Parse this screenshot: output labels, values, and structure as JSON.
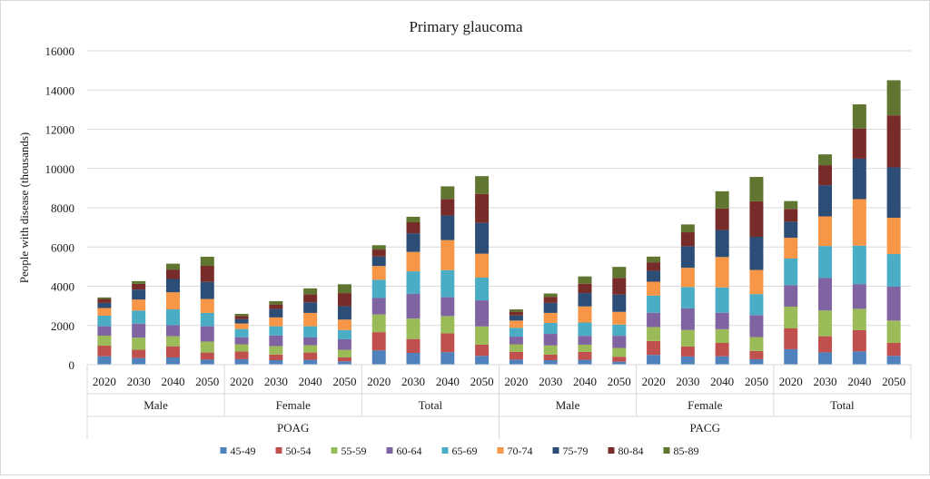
{
  "chart_data": {
    "type": "bar",
    "stacked": true,
    "title": "Primary glaucoma",
    "xlabel": "",
    "ylabel": "People with disease (thousands)",
    "ylim": [
      0,
      16000
    ],
    "yticks": [
      "0",
      "2000",
      "4000",
      "6000",
      "8000",
      "10000",
      "12000",
      "14000",
      "16000"
    ],
    "grid": true,
    "legend_position": "bottom",
    "groups": [
      {
        "label": "POAG",
        "subgroups": [
          "Male",
          "Female",
          "Total"
        ]
      },
      {
        "label": "PACG",
        "subgroups": [
          "Male",
          "Female",
          "Total"
        ]
      }
    ],
    "years": [
      "2020",
      "2030",
      "2040",
      "2050"
    ],
    "categories": [
      "POAG Male 2020",
      "POAG Male 2030",
      "POAG Male 2040",
      "POAG Male 2050",
      "POAG Female 2020",
      "POAG Female 2030",
      "POAG Female 2040",
      "POAG Female 2050",
      "POAG Total 2020",
      "POAG Total 2030",
      "POAG Total 2040",
      "POAG Total 2050",
      "PACG Male 2020",
      "PACG Male 2030",
      "PACG Male 2040",
      "PACG Male 2050",
      "PACG Female 2020",
      "PACG Female 2030",
      "PACG Female 2040",
      "PACG Female 2050",
      "PACG Total 2020",
      "PACG Total 2030",
      "PACG Total 2040",
      "PACG Total 2050"
    ],
    "series": [
      {
        "name": "45-49",
        "color": "#4F81BD",
        "values": [
          430,
          340,
          370,
          260,
          280,
          230,
          250,
          170,
          730,
          600,
          640,
          450,
          260,
          230,
          250,
          155,
          500,
          420,
          430,
          280,
          790,
          630,
          680,
          450
        ]
      },
      {
        "name": "50-54",
        "color": "#C0504D",
        "values": [
          540,
          420,
          570,
          360,
          390,
          290,
          370,
          200,
          930,
          710,
          960,
          570,
          390,
          280,
          400,
          250,
          710,
          510,
          680,
          420,
          1060,
          820,
          1080,
          660
        ]
      },
      {
        "name": "55-59",
        "color": "#9BBB59",
        "values": [
          510,
          620,
          510,
          560,
          370,
          430,
          370,
          390,
          900,
          1040,
          880,
          930,
          390,
          470,
          370,
          450,
          710,
          840,
          700,
          710,
          1110,
          1310,
          1090,
          1140
        ]
      },
      {
        "name": "60-64",
        "color": "#8064A2",
        "values": [
          480,
          710,
          560,
          780,
          360,
          540,
          400,
          540,
          840,
          1260,
          960,
          1330,
          390,
          590,
          450,
          620,
          730,
          1100,
          840,
          1120,
          1090,
          1660,
          1260,
          1730
        ]
      },
      {
        "name": "65-69",
        "color": "#4BACC6",
        "values": [
          540,
          670,
          810,
          680,
          420,
          470,
          570,
          470,
          930,
          1150,
          1380,
          1160,
          450,
          560,
          680,
          570,
          870,
          1090,
          1290,
          1070,
          1360,
          1630,
          1960,
          1660
        ]
      },
      {
        "name": "70-74",
        "color": "#F79646",
        "values": [
          390,
          560,
          870,
          710,
          280,
          450,
          680,
          530,
          700,
          990,
          1530,
          1220,
          370,
          510,
          820,
          650,
          710,
          980,
          1550,
          1230,
          1060,
          1510,
          2370,
          1850
        ]
      },
      {
        "name": "75-79",
        "color": "#2C4D75",
        "values": [
          260,
          510,
          680,
          870,
          230,
          430,
          540,
          680,
          480,
          950,
          1260,
          1570,
          260,
          510,
          680,
          880,
          560,
          1100,
          1380,
          1690,
          820,
          1590,
          2060,
          2570
        ]
      },
      {
        "name": "80-84",
        "color": "#772C2A",
        "values": [
          200,
          290,
          480,
          820,
          150,
          230,
          400,
          670,
          360,
          560,
          840,
          1470,
          190,
          310,
          480,
          850,
          430,
          710,
          1090,
          1810,
          650,
          1020,
          1540,
          2650
        ]
      },
      {
        "name": "85-89",
        "color": "#5F7530",
        "values": [
          80,
          140,
          300,
          460,
          110,
          170,
          310,
          450,
          220,
          280,
          640,
          910,
          120,
          170,
          370,
          560,
          290,
          400,
          880,
          1240,
          400,
          550,
          1230,
          1790
        ]
      }
    ]
  }
}
